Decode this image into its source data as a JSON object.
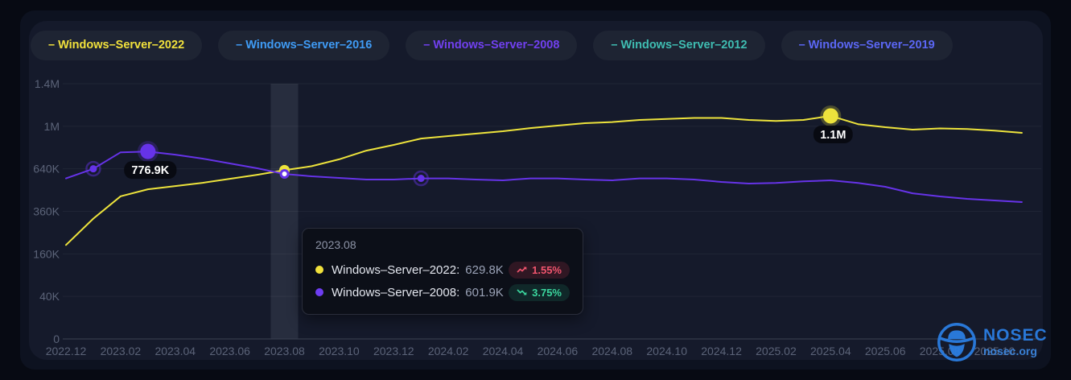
{
  "page": {
    "watermark": {
      "brand": "NOSEC",
      "site": "nosec.org"
    }
  },
  "legend": {
    "prefix": "–",
    "items": [
      {
        "label": "Windows–Server–2022",
        "color": "#f1e13c"
      },
      {
        "label": "Windows–Server–2016",
        "color": "#3f9bf5"
      },
      {
        "label": "Windows–Server–2008",
        "color": "#7140f0"
      },
      {
        "label": "Windows–Server–2012",
        "color": "#3fbdb2"
      },
      {
        "label": "Windows–Server–2019",
        "color": "#5b67f5"
      }
    ]
  },
  "chart_data": {
    "type": "line",
    "title": "",
    "xlabel": "",
    "ylabel": "",
    "y_scale": "sqrt",
    "ylim": [
      0,
      1440000
    ],
    "grid": true,
    "x": [
      "2022.12",
      "2023.01",
      "2023.02",
      "2023.03",
      "2023.04",
      "2023.05",
      "2023.06",
      "2023.07",
      "2023.08",
      "2023.09",
      "2023.10",
      "2023.11",
      "2023.12",
      "2024.01",
      "2024.02",
      "2024.03",
      "2024.04",
      "2024.05",
      "2024.06",
      "2024.07",
      "2024.08",
      "2024.09",
      "2024.10",
      "2024.11",
      "2024.12",
      "2025.01",
      "2025.02",
      "2025.03",
      "2025.04",
      "2025.05",
      "2025.06",
      "2025.07",
      "2025.08",
      "2025.09",
      "2025.10",
      "2025.11"
    ],
    "y_ticks": [
      {
        "label": "1.4M",
        "value": 1440000
      },
      {
        "label": "1M",
        "value": 1000000
      },
      {
        "label": "640K",
        "value": 640000
      },
      {
        "label": "360K",
        "value": 360000
      },
      {
        "label": "160K",
        "value": 160000
      },
      {
        "label": "40K",
        "value": 40000
      },
      {
        "label": "0",
        "value": 0
      }
    ],
    "series": [
      {
        "name": "Windows–Server–2022",
        "color": "#ede33c",
        "values": [
          195000,
          320000,
          450000,
          495000,
          517000,
          539000,
          567000,
          596000,
          629800,
          660000,
          713000,
          784000,
          832000,
          888000,
          910000,
          932000,
          954000,
          983000,
          1006000,
          1029000,
          1040000,
          1060000,
          1070000,
          1080000,
          1080000,
          1060000,
          1050000,
          1060000,
          1100000,
          1020000,
          991000,
          969000,
          980000,
          975000,
          960000,
          939000
        ]
      },
      {
        "name": "Windows–Server–2008",
        "color": "#6633e8",
        "values": [
          570000,
          640000,
          770000,
          776900,
          751000,
          719000,
          681000,
          644000,
          601900,
          585000,
          573000,
          562000,
          562000,
          570000,
          570000,
          562000,
          556000,
          570000,
          570000,
          562000,
          556000,
          570000,
          570000,
          562000,
          545000,
          534000,
          538000,
          549000,
          556000,
          538000,
          512000,
          469000,
          449000,
          434000,
          424000,
          414000
        ]
      }
    ],
    "annotations": {
      "highlight_band_x_index": 8,
      "point_labels": [
        {
          "series_index": 1,
          "x_index": 3,
          "text": "776.9K"
        },
        {
          "series_index": 0,
          "x_index": 28,
          "text": "1.1M"
        }
      ],
      "glow_points": [
        {
          "series_index": 1,
          "x_index": 1
        },
        {
          "series_index": 1,
          "x_index": 13
        }
      ],
      "hover_points": [
        {
          "series_index": 0,
          "x_index": 8,
          "style": "solid"
        },
        {
          "series_index": 1,
          "x_index": 8,
          "style": "open"
        }
      ]
    }
  },
  "tooltip": {
    "title": "2023.08",
    "separator": ":",
    "rows": [
      {
        "name": "Windows–Server–2022",
        "value": "629.8K",
        "change": "1.55%",
        "trend": "up",
        "dot_color": "#f1e13c"
      },
      {
        "name": "Windows–Server–2008",
        "value": "601.9K",
        "change": "3.75%",
        "trend": "down",
        "dot_color": "#6e3df2"
      }
    ]
  }
}
